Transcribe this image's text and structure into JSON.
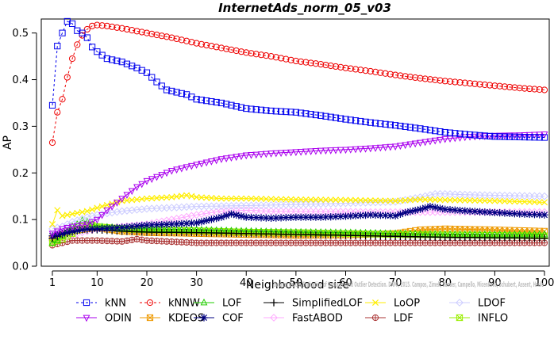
{
  "chart_data": {
    "type": "line",
    "title": "InternetAds_norm_05_v03",
    "xlabel": "Neighborhood size",
    "ylabel": "AP",
    "xlim": [
      1,
      100
    ],
    "ylim": [
      0,
      0.53
    ],
    "xticks": [
      1,
      10,
      20,
      30,
      40,
      50,
      60,
      70,
      80,
      90,
      100
    ],
    "yticks": [
      0.0,
      0.1,
      0.2,
      0.3,
      0.4,
      0.5
    ],
    "grid": false,
    "legend_position": "bottom",
    "watermark": "Source: On the Evaluation of Unsupervised Outlier Detection. DAMI, 2015. Campos, Zimek, Sander, Campello, Micenkova, Schubert, Assent, Houle",
    "series": [
      {
        "name": "kNN",
        "color": "#0000ee",
        "marker": "square",
        "dash": "3,3",
        "points": [
          [
            1,
            0.345
          ],
          [
            2,
            0.472
          ],
          [
            3,
            0.5
          ],
          [
            4,
            0.525
          ],
          [
            5,
            0.52
          ],
          [
            6,
            0.505
          ],
          [
            7,
            0.5
          ],
          [
            8,
            0.49
          ],
          [
            9,
            0.47
          ],
          [
            10,
            0.46
          ],
          [
            12,
            0.445
          ],
          [
            15,
            0.438
          ],
          [
            18,
            0.425
          ],
          [
            20,
            0.415
          ],
          [
            22,
            0.395
          ],
          [
            24,
            0.378
          ],
          [
            28,
            0.368
          ],
          [
            30,
            0.358
          ],
          [
            35,
            0.35
          ],
          [
            40,
            0.338
          ],
          [
            45,
            0.333
          ],
          [
            50,
            0.33
          ],
          [
            55,
            0.323
          ],
          [
            60,
            0.315
          ],
          [
            65,
            0.308
          ],
          [
            70,
            0.302
          ],
          [
            75,
            0.295
          ],
          [
            80,
            0.287
          ],
          [
            85,
            0.282
          ],
          [
            90,
            0.278
          ],
          [
            95,
            0.277
          ],
          [
            100,
            0.276
          ]
        ]
      },
      {
        "name": "kNNW",
        "color": "#ee0000",
        "marker": "circle",
        "dash": "3,3",
        "points": [
          [
            1,
            0.265
          ],
          [
            2,
            0.33
          ],
          [
            3,
            0.358
          ],
          [
            4,
            0.405
          ],
          [
            5,
            0.445
          ],
          [
            6,
            0.475
          ],
          [
            7,
            0.495
          ],
          [
            8,
            0.508
          ],
          [
            9,
            0.515
          ],
          [
            10,
            0.517
          ],
          [
            12,
            0.515
          ],
          [
            15,
            0.51
          ],
          [
            20,
            0.5
          ],
          [
            25,
            0.49
          ],
          [
            30,
            0.478
          ],
          [
            35,
            0.468
          ],
          [
            40,
            0.458
          ],
          [
            45,
            0.45
          ],
          [
            50,
            0.44
          ],
          [
            55,
            0.433
          ],
          [
            60,
            0.425
          ],
          [
            65,
            0.418
          ],
          [
            70,
            0.41
          ],
          [
            75,
            0.403
          ],
          [
            80,
            0.397
          ],
          [
            85,
            0.392
          ],
          [
            90,
            0.387
          ],
          [
            95,
            0.382
          ],
          [
            100,
            0.378
          ]
        ]
      },
      {
        "name": "LOF",
        "color": "#22cc00",
        "marker": "triangle",
        "dash": "",
        "points": [
          [
            1,
            0.05
          ],
          [
            2,
            0.055
          ],
          [
            3,
            0.065
          ],
          [
            4,
            0.075
          ],
          [
            5,
            0.085
          ],
          [
            6,
            0.09
          ],
          [
            7,
            0.098
          ],
          [
            8,
            0.095
          ],
          [
            9,
            0.09
          ],
          [
            10,
            0.085
          ],
          [
            15,
            0.082
          ],
          [
            20,
            0.08
          ],
          [
            30,
            0.078
          ],
          [
            40,
            0.075
          ],
          [
            50,
            0.073
          ],
          [
            60,
            0.072
          ],
          [
            70,
            0.07
          ],
          [
            80,
            0.068
          ],
          [
            90,
            0.068
          ],
          [
            100,
            0.068
          ]
        ]
      },
      {
        "name": "SimplifiedLOF",
        "color": "#000000",
        "marker": "plus",
        "dash": "",
        "points": [
          [
            1,
            0.06
          ],
          [
            3,
            0.068
          ],
          [
            5,
            0.073
          ],
          [
            7,
            0.078
          ],
          [
            10,
            0.078
          ],
          [
            15,
            0.075
          ],
          [
            20,
            0.073
          ],
          [
            30,
            0.072
          ],
          [
            40,
            0.07
          ],
          [
            50,
            0.068
          ],
          [
            60,
            0.066
          ],
          [
            70,
            0.064
          ],
          [
            80,
            0.062
          ],
          [
            90,
            0.061
          ],
          [
            100,
            0.06
          ]
        ]
      },
      {
        "name": "LoOP",
        "color": "#ffee00",
        "marker": "x",
        "dash": "",
        "points": [
          [
            1,
            0.09
          ],
          [
            2,
            0.12
          ],
          [
            3,
            0.108
          ],
          [
            5,
            0.112
          ],
          [
            8,
            0.118
          ],
          [
            10,
            0.125
          ],
          [
            15,
            0.14
          ],
          [
            20,
            0.145
          ],
          [
            25,
            0.148
          ],
          [
            28,
            0.152
          ],
          [
            30,
            0.148
          ],
          [
            35,
            0.145
          ],
          [
            40,
            0.145
          ],
          [
            50,
            0.143
          ],
          [
            60,
            0.142
          ],
          [
            70,
            0.14
          ],
          [
            75,
            0.143
          ],
          [
            80,
            0.142
          ],
          [
            90,
            0.14
          ],
          [
            100,
            0.137
          ]
        ]
      },
      {
        "name": "LDOF",
        "color": "#ccccff",
        "marker": "diamond",
        "dash": "",
        "points": [
          [
            1,
            0.08
          ],
          [
            3,
            0.085
          ],
          [
            5,
            0.095
          ],
          [
            8,
            0.105
          ],
          [
            10,
            0.11
          ],
          [
            15,
            0.118
          ],
          [
            20,
            0.123
          ],
          [
            30,
            0.128
          ],
          [
            40,
            0.13
          ],
          [
            50,
            0.132
          ],
          [
            60,
            0.135
          ],
          [
            70,
            0.138
          ],
          [
            75,
            0.148
          ],
          [
            78,
            0.155
          ],
          [
            80,
            0.155
          ],
          [
            85,
            0.153
          ],
          [
            90,
            0.152
          ],
          [
            100,
            0.15
          ]
        ]
      },
      {
        "name": "ODIN",
        "color": "#aa00ee",
        "marker": "triangle-down",
        "dash": "",
        "points": [
          [
            1,
            0.07
          ],
          [
            3,
            0.08
          ],
          [
            5,
            0.085
          ],
          [
            8,
            0.09
          ],
          [
            10,
            0.1
          ],
          [
            12,
            0.12
          ],
          [
            15,
            0.145
          ],
          [
            18,
            0.17
          ],
          [
            20,
            0.183
          ],
          [
            25,
            0.205
          ],
          [
            30,
            0.218
          ],
          [
            35,
            0.23
          ],
          [
            40,
            0.238
          ],
          [
            45,
            0.242
          ],
          [
            50,
            0.245
          ],
          [
            55,
            0.248
          ],
          [
            60,
            0.25
          ],
          [
            65,
            0.253
          ],
          [
            70,
            0.257
          ],
          [
            75,
            0.265
          ],
          [
            80,
            0.273
          ],
          [
            85,
            0.278
          ],
          [
            90,
            0.28
          ],
          [
            95,
            0.281
          ],
          [
            100,
            0.283
          ]
        ]
      },
      {
        "name": "KDEOS",
        "color": "#ee9900",
        "marker": "square-x",
        "dash": "",
        "points": [
          [
            1,
            0.06
          ],
          [
            3,
            0.068
          ],
          [
            5,
            0.075
          ],
          [
            8,
            0.08
          ],
          [
            10,
            0.082
          ],
          [
            15,
            0.075
          ],
          [
            20,
            0.072
          ],
          [
            30,
            0.07
          ],
          [
            40,
            0.068
          ],
          [
            50,
            0.066
          ],
          [
            60,
            0.067
          ],
          [
            70,
            0.07
          ],
          [
            75,
            0.078
          ],
          [
            80,
            0.08
          ],
          [
            90,
            0.078
          ],
          [
            100,
            0.075
          ]
        ]
      },
      {
        "name": "COF",
        "color": "#000080",
        "marker": "asterisk",
        "dash": "",
        "points": [
          [
            1,
            0.065
          ],
          [
            3,
            0.07
          ],
          [
            5,
            0.075
          ],
          [
            8,
            0.08
          ],
          [
            10,
            0.08
          ],
          [
            15,
            0.083
          ],
          [
            20,
            0.088
          ],
          [
            25,
            0.09
          ],
          [
            30,
            0.093
          ],
          [
            35,
            0.105
          ],
          [
            37,
            0.112
          ],
          [
            40,
            0.105
          ],
          [
            45,
            0.103
          ],
          [
            50,
            0.105
          ],
          [
            55,
            0.105
          ],
          [
            60,
            0.107
          ],
          [
            65,
            0.11
          ],
          [
            70,
            0.108
          ],
          [
            72,
            0.115
          ],
          [
            75,
            0.122
          ],
          [
            77,
            0.128
          ],
          [
            80,
            0.122
          ],
          [
            85,
            0.118
          ],
          [
            90,
            0.115
          ],
          [
            95,
            0.112
          ],
          [
            100,
            0.11
          ]
        ]
      },
      {
        "name": "FastABOD",
        "color": "#ffaaff",
        "marker": "diamond",
        "dash": "",
        "points": [
          [
            1,
            0.055
          ],
          [
            3,
            0.06
          ],
          [
            5,
            0.068
          ],
          [
            8,
            0.075
          ],
          [
            10,
            0.08
          ],
          [
            15,
            0.085
          ],
          [
            20,
            0.09
          ],
          [
            25,
            0.1
          ],
          [
            30,
            0.11
          ],
          [
            35,
            0.118
          ],
          [
            40,
            0.12
          ],
          [
            45,
            0.118
          ],
          [
            50,
            0.118
          ],
          [
            55,
            0.117
          ],
          [
            60,
            0.117
          ],
          [
            65,
            0.116
          ],
          [
            70,
            0.116
          ],
          [
            80,
            0.116
          ],
          [
            90,
            0.116
          ],
          [
            100,
            0.116
          ]
        ]
      },
      {
        "name": "LDF",
        "color": "#aa3333",
        "marker": "circle-plus",
        "dash": "",
        "points": [
          [
            1,
            0.045
          ],
          [
            3,
            0.05
          ],
          [
            5,
            0.055
          ],
          [
            8,
            0.055
          ],
          [
            10,
            0.055
          ],
          [
            15,
            0.053
          ],
          [
            18,
            0.058
          ],
          [
            20,
            0.055
          ],
          [
            30,
            0.05
          ],
          [
            40,
            0.05
          ],
          [
            50,
            0.05
          ],
          [
            60,
            0.05
          ],
          [
            70,
            0.05
          ],
          [
            80,
            0.05
          ],
          [
            90,
            0.05
          ],
          [
            100,
            0.05
          ]
        ]
      },
      {
        "name": "INFLO",
        "color": "#99ee00",
        "marker": "hourglass",
        "dash": "",
        "points": [
          [
            1,
            0.05
          ],
          [
            3,
            0.058
          ],
          [
            5,
            0.07
          ],
          [
            7,
            0.085
          ],
          [
            9,
            0.088
          ],
          [
            10,
            0.085
          ],
          [
            15,
            0.08
          ],
          [
            20,
            0.078
          ],
          [
            30,
            0.076
          ],
          [
            40,
            0.073
          ],
          [
            50,
            0.072
          ],
          [
            60,
            0.07
          ],
          [
            70,
            0.068
          ],
          [
            80,
            0.067
          ],
          [
            90,
            0.066
          ],
          [
            100,
            0.065
          ]
        ]
      }
    ],
    "legend_order": [
      "kNN",
      "kNNW",
      "LOF",
      "SimplifiedLOF",
      "LoOP",
      "LDOF",
      "ODIN",
      "KDEOS",
      "COF",
      "FastABOD",
      "LDF",
      "INFLO"
    ]
  }
}
